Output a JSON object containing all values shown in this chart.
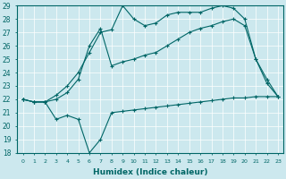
{
  "xlabel": "Humidex (Indice chaleur)",
  "bg_color": "#cce8ee",
  "line_color": "#006666",
  "xlim": [
    -0.5,
    23.5
  ],
  "ylim": [
    18,
    29
  ],
  "yticks": [
    18,
    19,
    20,
    21,
    22,
    23,
    24,
    25,
    26,
    27,
    28,
    29
  ],
  "xticks": [
    0,
    1,
    2,
    3,
    4,
    5,
    6,
    7,
    8,
    9,
    10,
    11,
    12,
    13,
    14,
    15,
    16,
    17,
    18,
    19,
    20,
    21,
    22,
    23
  ],
  "series": [
    [
      22.0,
      21.8,
      21.8,
      20.5,
      20.8,
      20.5,
      18.0,
      19.0,
      21.0,
      21.1,
      21.2,
      21.3,
      21.4,
      21.5,
      21.6,
      21.7,
      21.8,
      21.9,
      22.0,
      22.1,
      22.1,
      22.2,
      22.2,
      22.2
    ],
    [
      22.0,
      21.8,
      21.8,
      22.0,
      22.5,
      23.5,
      26.0,
      27.3,
      24.5,
      24.8,
      25.0,
      25.3,
      25.5,
      26.0,
      26.5,
      27.0,
      27.3,
      27.5,
      27.8,
      28.0,
      27.5,
      25.0,
      23.5,
      22.2
    ],
    [
      22.0,
      21.8,
      21.8,
      22.3,
      23.0,
      24.0,
      25.5,
      27.0,
      27.2,
      29.0,
      28.0,
      27.5,
      27.7,
      28.3,
      28.5,
      28.5,
      28.5,
      28.8,
      29.0,
      28.8,
      28.0,
      25.0,
      23.2,
      22.2
    ]
  ]
}
